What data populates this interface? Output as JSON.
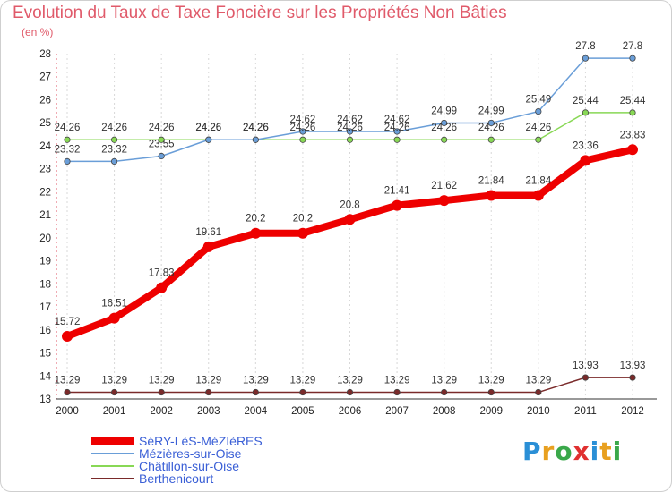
{
  "page": {
    "title": "Evolution du Taux de Taxe Foncière sur les Propriétés Non Bâties",
    "subtitle": "(en %)",
    "brand": "Proxiti"
  },
  "chart_data": {
    "type": "line",
    "title": "Evolution du Taux de Taxe Foncière sur les Propriétés Non Bâties",
    "ylabel": "(en %)",
    "xlabel": "",
    "ylim": [
      13,
      28
    ],
    "yticks": [
      13,
      14,
      15,
      16,
      17,
      18,
      19,
      20,
      21,
      22,
      23,
      24,
      25,
      26,
      27,
      28
    ],
    "categories": [
      "2000",
      "2001",
      "2002",
      "2003",
      "2004",
      "2005",
      "2006",
      "2007",
      "2008",
      "2009",
      "2010",
      "2011",
      "2012"
    ],
    "grid": "vertical dashed",
    "legend_position": "bottom-left",
    "series": [
      {
        "name": "SéRY-LèS-MéZIèRES",
        "color": "#ee0000",
        "values": [
          15.72,
          16.51,
          17.83,
          19.61,
          20.2,
          20.2,
          20.8,
          21.41,
          21.62,
          21.84,
          21.84,
          23.36,
          23.83
        ]
      },
      {
        "name": "Mézières-sur-Oise",
        "color": "#6a9ed8",
        "values": [
          23.32,
          23.32,
          23.55,
          24.26,
          24.26,
          24.62,
          24.62,
          24.62,
          24.99,
          24.99,
          25.49,
          27.8,
          27.8
        ]
      },
      {
        "name": "Châtillon-sur-Oise",
        "color": "#88d855",
        "values": [
          24.26,
          24.26,
          24.26,
          24.26,
          24.26,
          24.26,
          24.26,
          24.26,
          24.26,
          24.26,
          24.26,
          25.44,
          25.44
        ]
      },
      {
        "name": "Berthenicourt",
        "color": "#7a2a2a",
        "values": [
          13.29,
          13.29,
          13.29,
          13.29,
          13.29,
          13.29,
          13.29,
          13.29,
          13.29,
          13.29,
          13.29,
          13.93,
          13.93
        ]
      }
    ]
  }
}
